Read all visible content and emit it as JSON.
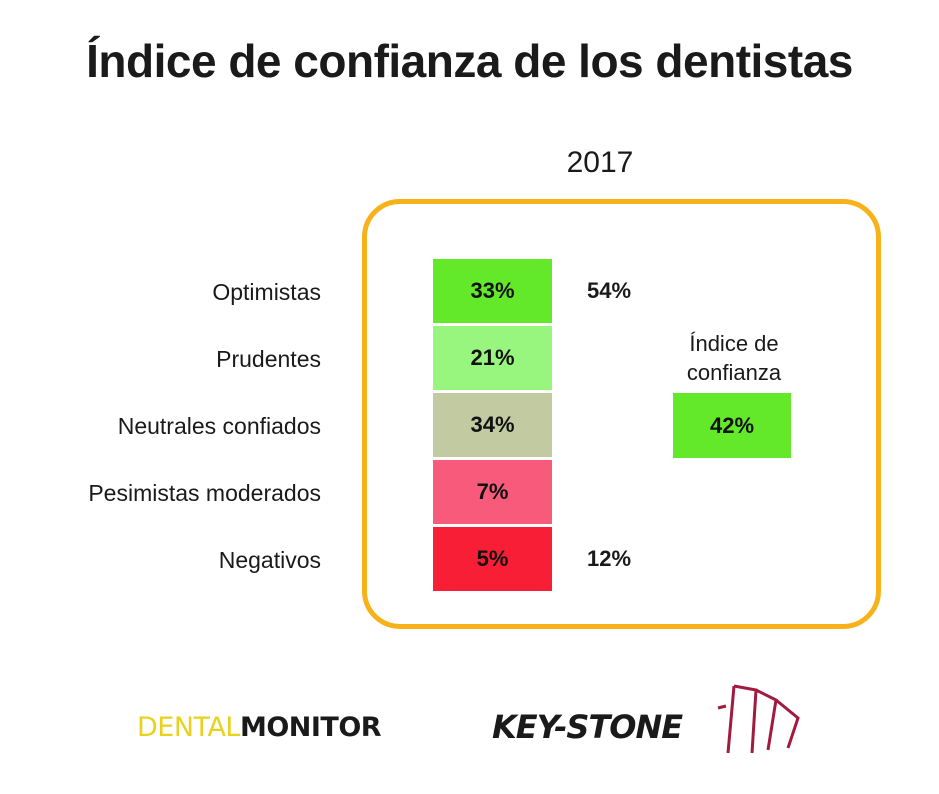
{
  "title": "Índice de confianza de los dentistas",
  "chart_data": {
    "type": "table",
    "title": "Índice de confianza de los dentistas",
    "year": "2017",
    "categories": [
      "Optimistas",
      "Prudentes",
      "Neutrales confiados",
      "Pesimistas moderados",
      "Negativos"
    ],
    "values": [
      "33%",
      "21%",
      "34%",
      "7%",
      "5%"
    ],
    "cell_colors": [
      "#63e92a",
      "#98f57d",
      "#c2caa2",
      "#f85a7c",
      "#f81e35"
    ],
    "group_values": [
      "54%",
      "",
      "",
      "",
      "12%"
    ],
    "index_label": "Índice de confianza",
    "index_value": "42%",
    "index_color": "#63e92a",
    "frame_color": "#f7b21a"
  },
  "logos": {
    "dental_light": "DENTAL",
    "dental_bold": "MONITOR",
    "keystone": "KEY-STONE",
    "keystone_mark_color": "#a11a3f"
  }
}
